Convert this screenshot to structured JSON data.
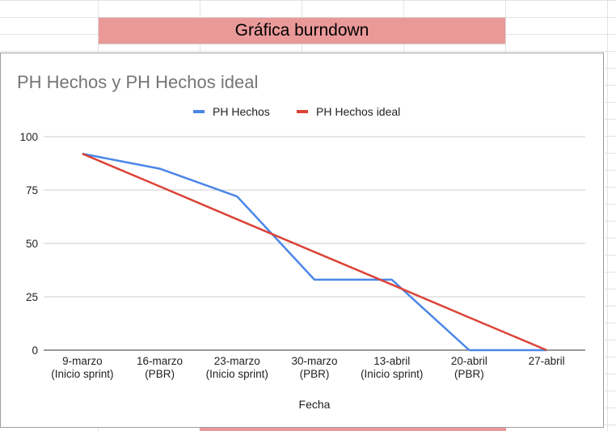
{
  "sheet": {
    "header_title": "Gráfica burndown"
  },
  "chart_data": {
    "type": "line",
    "title": "PH Hechos  y PH Hechos ideal",
    "xlabel": "Fecha",
    "ylabel": "",
    "ylim": [
      0,
      100
    ],
    "yticks": [
      0,
      25,
      50,
      75,
      100
    ],
    "grid": true,
    "legend_position": "top",
    "categories": [
      [
        "9-marzo",
        "(Inicio sprint)"
      ],
      [
        "16-marzo",
        "(PBR)"
      ],
      [
        "23-marzo",
        "(Inicio sprint)"
      ],
      [
        "30-marzo",
        "(PBR)"
      ],
      [
        "13-abril",
        "(Inicio sprint)"
      ],
      [
        "20-abril",
        "(PBR)"
      ],
      [
        "27-abril"
      ]
    ],
    "series": [
      {
        "name": "PH Hechos",
        "color": "#4a86e8",
        "values": [
          92,
          85,
          72,
          33,
          33,
          0,
          0
        ]
      },
      {
        "name": "PH Hechos ideal",
        "color": "#db4437",
        "values": [
          92,
          76.7,
          61.3,
          46,
          30.7,
          15.3,
          0
        ]
      }
    ]
  }
}
